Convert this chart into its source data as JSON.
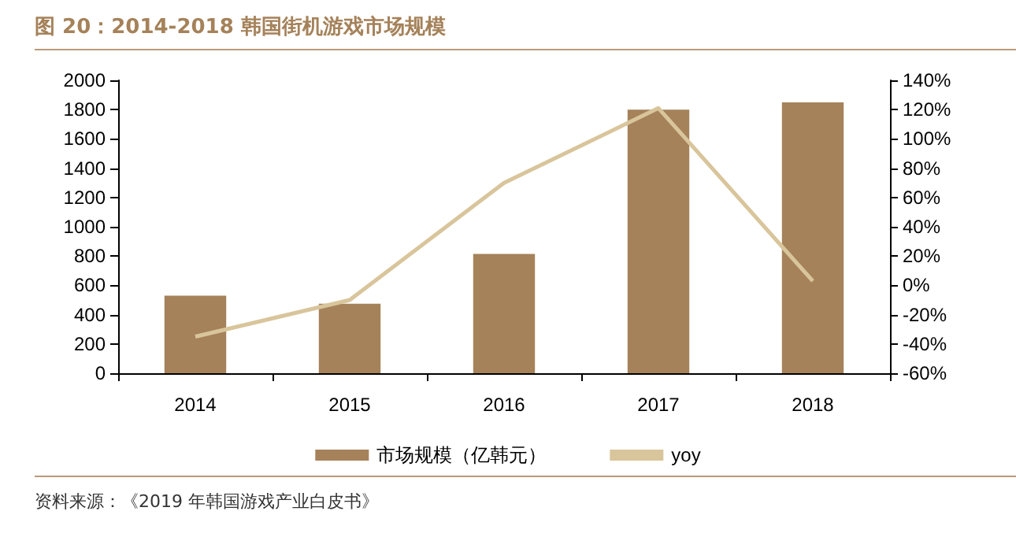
{
  "chart_data": {
    "type": "bar",
    "title": "图 20：2014-2018 韩国街机游戏市场规模",
    "categories": [
      "2014",
      "2015",
      "2016",
      "2017",
      "2018"
    ],
    "series": [
      {
        "name": "市场规模（亿韩元）",
        "color": "#a5825a",
        "values": [
          530,
          475,
          815,
          1800,
          1850
        ]
      },
      {
        "name": "yoy",
        "type": "line",
        "axis": "y2",
        "color": "#d9c59b",
        "values": [
          -35,
          -10,
          70,
          121,
          3
        ]
      }
    ],
    "ylim": [
      0,
      2000
    ],
    "yticks": [
      0,
      200,
      400,
      600,
      800,
      1000,
      1200,
      1400,
      1600,
      1800,
      2000
    ],
    "y2lim": [
      -60,
      140
    ],
    "y2ticks": [
      {
        "value": -60,
        "label": "-60%"
      },
      {
        "value": -40,
        "label": "-40%"
      },
      {
        "value": -20,
        "label": "-20%"
      },
      {
        "value": 0,
        "label": "0%"
      },
      {
        "value": 20,
        "label": "20%"
      },
      {
        "value": 40,
        "label": "40%"
      },
      {
        "value": 60,
        "label": "60%"
      },
      {
        "value": 80,
        "label": "80%"
      },
      {
        "value": 100,
        "label": "100%"
      },
      {
        "value": 120,
        "label": "120%"
      },
      {
        "value": 140,
        "label": "140%"
      }
    ],
    "grid": false,
    "legend": "bottom",
    "marker": "none",
    "annotations": [
      "资料来源：《2019 年韩国游戏产业白皮书》"
    ]
  }
}
